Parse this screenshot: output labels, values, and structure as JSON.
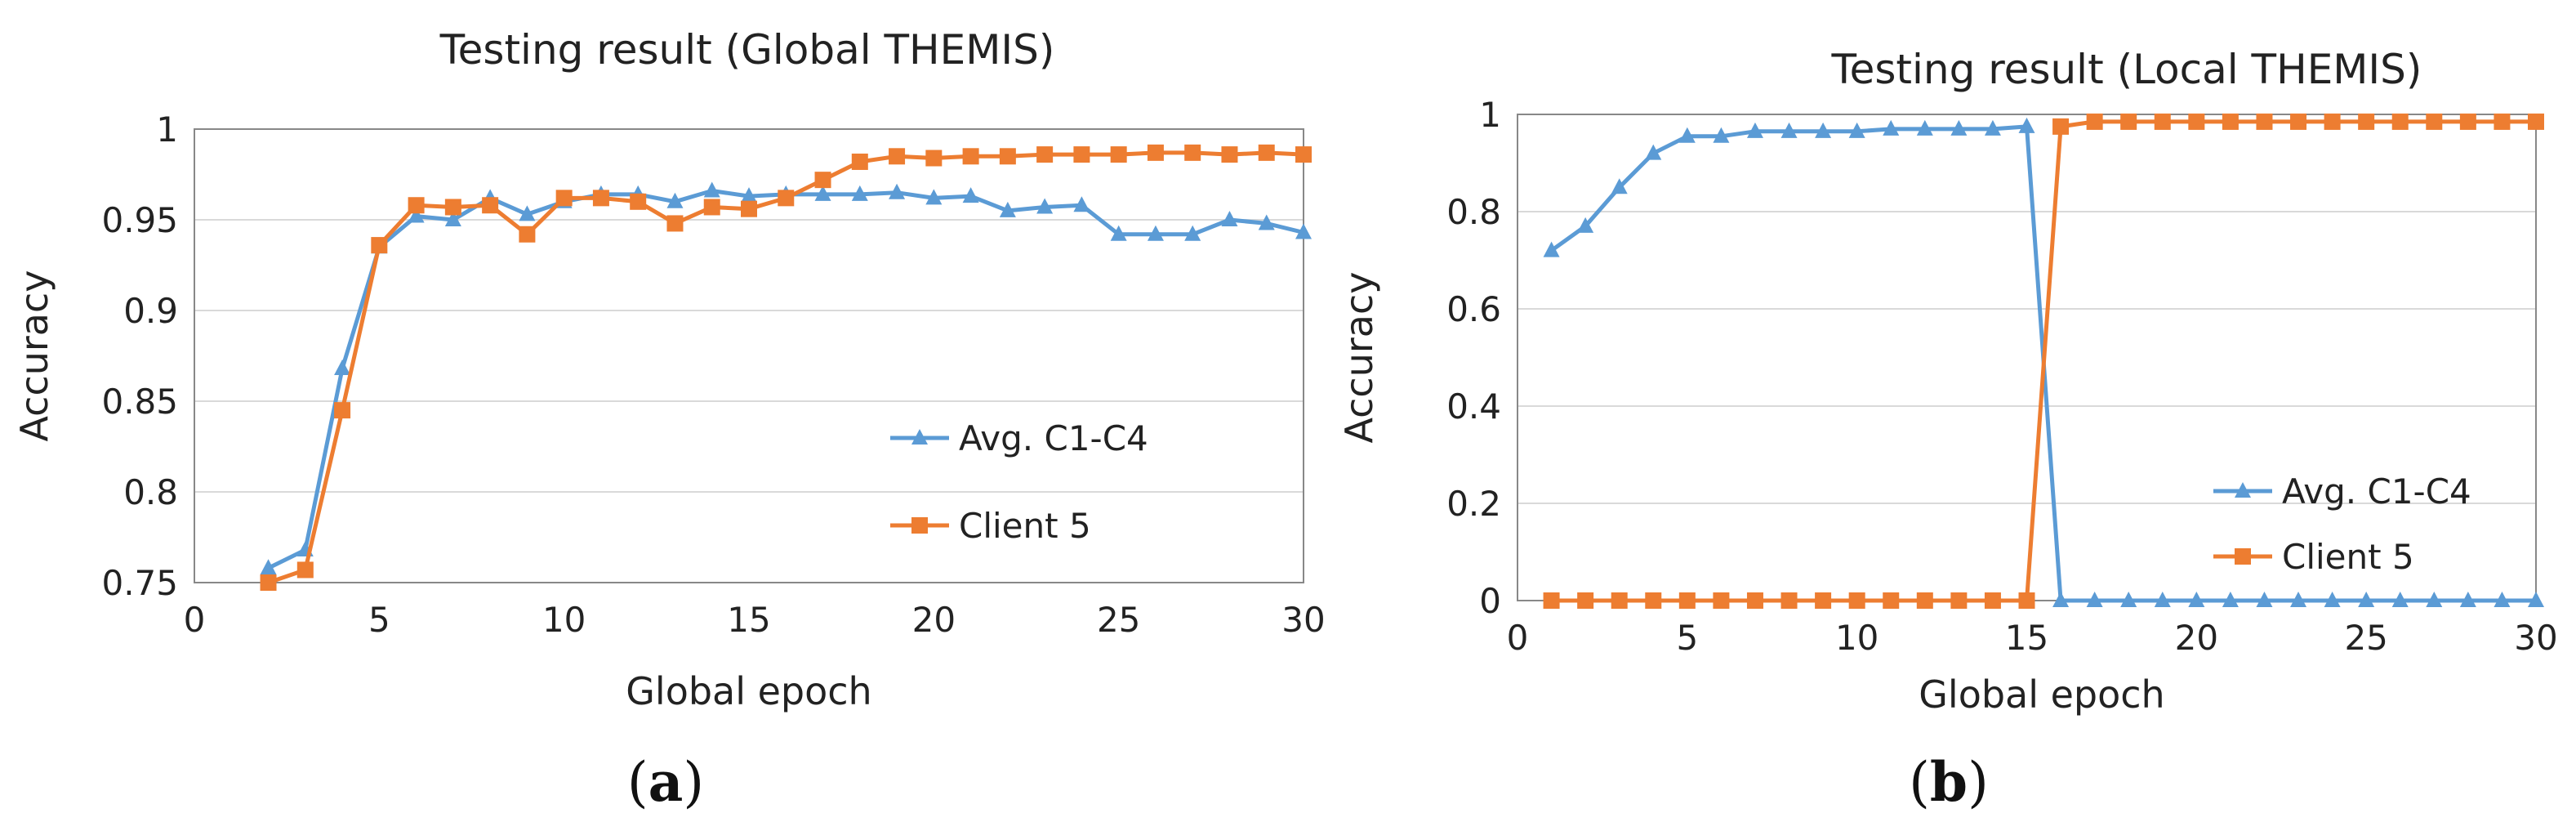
{
  "colors": {
    "series_blue": "#5b9bd5",
    "series_orange": "#ed7d31",
    "grid": "#d9d9d9",
    "axis": "#888888"
  },
  "chart_data": [
    {
      "type": "line",
      "title": "Testing result (Global THEMIS)",
      "xlabel": "Global epoch",
      "ylabel": "Accuracy",
      "xlim": [
        0,
        30
      ],
      "ylim": [
        0.75,
        1
      ],
      "xticks": [
        0,
        5,
        10,
        15,
        20,
        25,
        30
      ],
      "xtick_labels": [
        "0",
        "5",
        "10",
        "15",
        "20",
        "25",
        "30"
      ],
      "yticks": [
        0.75,
        0.8,
        0.85,
        0.9,
        0.95,
        1
      ],
      "ytick_labels": [
        "0.75",
        "0.8",
        "0.85",
        "0.9",
        "0.95",
        "1"
      ],
      "grid": "horizontal",
      "legend_position": "lower-right",
      "caption_letter": "a",
      "series": [
        {
          "name": "Avg. C1-C4",
          "marker": "triangle",
          "color": "#5b9bd5",
          "x": [
            2,
            3,
            4,
            5,
            6,
            7,
            8,
            9,
            10,
            11,
            12,
            13,
            14,
            15,
            16,
            17,
            18,
            19,
            20,
            21,
            22,
            23,
            24,
            25,
            26,
            27,
            28,
            29,
            30
          ],
          "y": [
            0.758,
            0.768,
            0.868,
            0.935,
            0.952,
            0.95,
            0.962,
            0.953,
            0.96,
            0.964,
            0.964,
            0.96,
            0.966,
            0.963,
            0.964,
            0.964,
            0.964,
            0.965,
            0.962,
            0.963,
            0.955,
            0.957,
            0.958,
            0.942,
            0.942,
            0.942,
            0.95,
            0.948,
            0.943
          ]
        },
        {
          "name": "Client 5",
          "marker": "square",
          "color": "#ed7d31",
          "x": [
            2,
            3,
            4,
            5,
            6,
            7,
            8,
            9,
            10,
            11,
            12,
            13,
            14,
            15,
            16,
            17,
            18,
            19,
            20,
            21,
            22,
            23,
            24,
            25,
            26,
            27,
            28,
            29,
            30
          ],
          "y": [
            0.75,
            0.757,
            0.845,
            0.936,
            0.958,
            0.957,
            0.958,
            0.942,
            0.962,
            0.962,
            0.96,
            0.948,
            0.957,
            0.956,
            0.962,
            0.972,
            0.982,
            0.985,
            0.984,
            0.985,
            0.985,
            0.986,
            0.986,
            0.986,
            0.987,
            0.987,
            0.986,
            0.987,
            0.986
          ]
        }
      ]
    },
    {
      "type": "line",
      "title": "Testing result (Local THEMIS)",
      "xlabel": "Global epoch",
      "ylabel": "Accuracy",
      "xlim": [
        0,
        30
      ],
      "ylim": [
        0,
        1
      ],
      "xticks": [
        0,
        5,
        10,
        15,
        20,
        25,
        30
      ],
      "xtick_labels": [
        "0",
        "5",
        "10",
        "15",
        "20",
        "25",
        "30"
      ],
      "yticks": [
        0,
        0.2,
        0.4,
        0.6,
        0.8,
        1
      ],
      "ytick_labels": [
        "0",
        "0.2",
        "0.4",
        "0.6",
        "0.8",
        "1"
      ],
      "grid": "horizontal",
      "legend_position": "lower-right",
      "caption_letter": "b",
      "series": [
        {
          "name": "Avg. C1-C4",
          "marker": "triangle",
          "color": "#5b9bd5",
          "x": [
            1,
            2,
            3,
            4,
            5,
            6,
            7,
            8,
            9,
            10,
            11,
            12,
            13,
            14,
            15,
            16,
            17,
            18,
            19,
            20,
            21,
            22,
            23,
            24,
            25,
            26,
            27,
            28,
            29,
            30
          ],
          "y": [
            0.72,
            0.77,
            0.85,
            0.92,
            0.955,
            0.955,
            0.965,
            0.965,
            0.965,
            0.965,
            0.97,
            0.97,
            0.97,
            0.97,
            0.975,
            0,
            0,
            0,
            0,
            0,
            0,
            0,
            0,
            0,
            0,
            0,
            0,
            0,
            0,
            0
          ]
        },
        {
          "name": "Client 5",
          "marker": "square",
          "color": "#ed7d31",
          "x": [
            1,
            2,
            3,
            4,
            5,
            6,
            7,
            8,
            9,
            10,
            11,
            12,
            13,
            14,
            15,
            16,
            17,
            18,
            19,
            20,
            21,
            22,
            23,
            24,
            25,
            26,
            27,
            28,
            29,
            30
          ],
          "y": [
            0,
            0,
            0,
            0,
            0,
            0,
            0,
            0,
            0,
            0,
            0,
            0,
            0,
            0,
            0,
            0.975,
            0.985,
            0.985,
            0.985,
            0.985,
            0.985,
            0.985,
            0.985,
            0.985,
            0.985,
            0.985,
            0.985,
            0.985,
            0.985,
            0.985
          ]
        }
      ]
    }
  ]
}
